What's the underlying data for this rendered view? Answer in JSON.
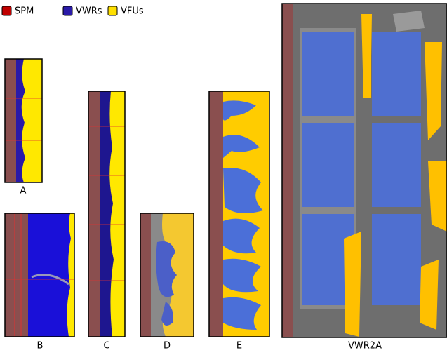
{
  "legend": [
    {
      "label": "SPM",
      "color": "#c00000"
    },
    {
      "label": "VWRs",
      "color": "#2a1aa8"
    },
    {
      "label": "VFUs",
      "color": "#ffe000"
    }
  ],
  "panels": [
    {
      "label": "A"
    },
    {
      "label": "B"
    },
    {
      "label": "C"
    },
    {
      "label": "D"
    },
    {
      "label": "E"
    },
    {
      "label": "VWR2A"
    }
  ]
}
